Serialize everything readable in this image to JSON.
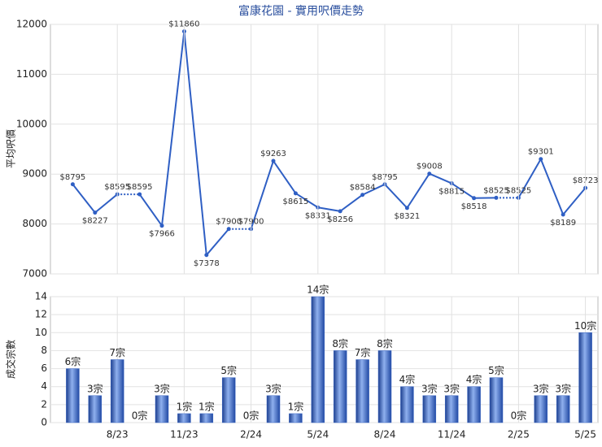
{
  "chart_data": [
    {
      "type": "line",
      "title": "富康花園 - 實用呎價走勢",
      "y_label": "平均呎價",
      "color": "#2f5fc4",
      "values": [
        8795,
        8227,
        8595,
        8595,
        7966,
        11860,
        7378,
        7900,
        7900,
        9263,
        8615,
        8331,
        8256,
        8584,
        8795,
        8321,
        9008,
        8815,
        8518,
        8525,
        8525,
        9301,
        8189,
        8723
      ],
      "value_labels": [
        "$8795",
        "$8227",
        "$8595",
        "$8595",
        "$7966",
        "$11860",
        "$7378",
        "$7900",
        "$7900",
        "$9263",
        "$8615",
        "$8331",
        "$8256",
        "$8584",
        "$8795",
        "$8321",
        "$9008",
        "$8815",
        "$8518",
        "$8525",
        "$8525",
        "$9301",
        "$8189",
        "$8723"
      ],
      "ylim": [
        7000,
        12000
      ],
      "yticks": [
        7000,
        8000,
        9000,
        10000,
        11000,
        12000
      ],
      "grid": true
    },
    {
      "type": "bar",
      "y_label": "成交宗數",
      "color": "#3a66c4",
      "categories": [
        null,
        null,
        "8/23",
        null,
        null,
        "11/23",
        null,
        null,
        "2/24",
        null,
        null,
        "5/24",
        null,
        null,
        "8/24",
        null,
        null,
        "11/24",
        null,
        null,
        "2/25",
        null,
        null,
        "5/25"
      ],
      "values": [
        6,
        3,
        7,
        0,
        3,
        1,
        1,
        5,
        0,
        3,
        1,
        14,
        8,
        7,
        8,
        4,
        3,
        3,
        4,
        5,
        0,
        3,
        3,
        10
      ],
      "value_labels": [
        "6宗",
        "3宗",
        "7宗",
        "0宗",
        "3宗",
        "1宗",
        "1宗",
        "5宗",
        "0宗",
        "3宗",
        "1宗",
        "14宗",
        "8宗",
        "7宗",
        "8宗",
        "4宗",
        "3宗",
        "3宗",
        "4宗",
        "5宗",
        "0宗",
        "3宗",
        "3宗",
        "10宗"
      ],
      "ylim": [
        0,
        14
      ],
      "yticks": [
        0,
        2,
        4,
        6,
        8,
        10,
        12,
        14
      ],
      "grid": true
    }
  ]
}
